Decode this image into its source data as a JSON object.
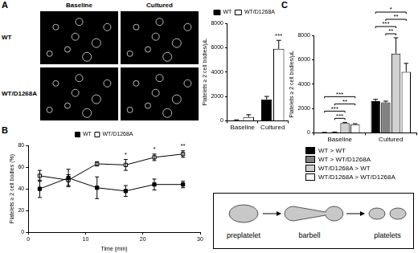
{
  "panel_labels": [
    "A",
    "B",
    "C"
  ],
  "micrographs": {
    "columns": [
      "Baseline",
      "Cultured"
    ],
    "rows": [
      "WT",
      "WT/D1268A"
    ]
  },
  "diagram": {
    "steps": [
      "preplatelet",
      "barbell",
      "platelets"
    ]
  },
  "chart_data": [
    {
      "type": "bar",
      "y_label": "Platelets ≥ 2 cell bodies/μL",
      "categories": [
        "Baseline",
        "Cultured"
      ],
      "series": [
        {
          "name": "WT",
          "color": "#000000",
          "values": [
            50,
            1750
          ],
          "errors": [
            30,
            250
          ]
        },
        {
          "name": "WT/D1268A",
          "color": "#ffffff",
          "values": [
            300,
            5900
          ],
          "errors": [
            200,
            700
          ]
        }
      ],
      "ylim": [
        0,
        8000
      ],
      "yticks": [
        0,
        2000,
        4000,
        6000,
        8000
      ],
      "grid": false,
      "legend": "top",
      "annotations": [
        {
          "category": "Cultured",
          "series": 1,
          "label": "***"
        }
      ]
    },
    {
      "type": "line",
      "x_label": "Time (min)",
      "y_label": "Platelets ≥ 2 cell bodies (%)",
      "x": [
        2,
        7,
        12,
        17,
        22,
        27
      ],
      "series": [
        {
          "name": "WT",
          "color": "#000000",
          "marker": "square",
          "values": [
            40,
            50,
            41,
            38,
            44,
            44
          ],
          "errors": [
            8,
            8,
            10,
            5,
            5,
            3
          ]
        },
        {
          "name": "WT/D1268A",
          "color": "#000000",
          "marker": "open_square",
          "values": [
            52,
            48,
            63,
            62,
            69,
            72
          ],
          "errors": [
            5,
            5,
            2,
            5,
            3,
            3
          ]
        }
      ],
      "xlim": [
        0,
        30
      ],
      "xticks": [
        0,
        10,
        20,
        30
      ],
      "ylim": [
        0,
        80
      ],
      "yticks": [
        0,
        20,
        40,
        60,
        80
      ],
      "grid": false,
      "legend": "top",
      "annotations": [
        {
          "x": 17,
          "label": "*"
        },
        {
          "x": 22,
          "label": "*"
        },
        {
          "x": 27,
          "label": "**"
        }
      ]
    },
    {
      "type": "bar",
      "y_label": "Platelets ≥ 2 cell bodies/μL",
      "categories": [
        "Baseline",
        "Cultured"
      ],
      "series": [
        {
          "name": "WT > WT",
          "color": "#000000",
          "values": [
            30,
            2600
          ],
          "errors": [
            10,
            150
          ]
        },
        {
          "name": "WT > WT/D1268A",
          "color": "#808080",
          "values": [
            60,
            2500
          ],
          "errors": [
            10,
            100
          ]
        },
        {
          "name": "WT/D1268A > WT",
          "color": "#d0d0d0",
          "values": [
            800,
            6500
          ],
          "errors": [
            60,
            1300
          ]
        },
        {
          "name": "WT/D1268A > WT/D1268A",
          "color": "#ffffff",
          "values": [
            700,
            5000
          ],
          "errors": [
            50,
            700
          ]
        }
      ],
      "ylim": [
        0,
        8000
      ],
      "yticks": [
        0,
        2000,
        4000,
        6000,
        8000
      ],
      "grid": false,
      "legend": "bottom",
      "brackets": [
        {
          "category": "Baseline",
          "from": 1,
          "to": 2,
          "label": "***"
        },
        {
          "category": "Baseline",
          "from": 0,
          "to": 2,
          "label": "***"
        },
        {
          "category": "Baseline",
          "from": 1,
          "to": 3,
          "label": "**"
        },
        {
          "category": "Baseline",
          "from": 0,
          "to": 3,
          "label": "***"
        },
        {
          "category": "Cultured",
          "from": 1,
          "to": 2,
          "label": "**"
        },
        {
          "category": "Cultured",
          "from": 0,
          "to": 2,
          "label": "***"
        },
        {
          "category": "Cultured",
          "from": 1,
          "to": 3,
          "label": "**"
        },
        {
          "category": "Cultured",
          "from": 0,
          "to": 3,
          "label": "*"
        }
      ]
    }
  ]
}
